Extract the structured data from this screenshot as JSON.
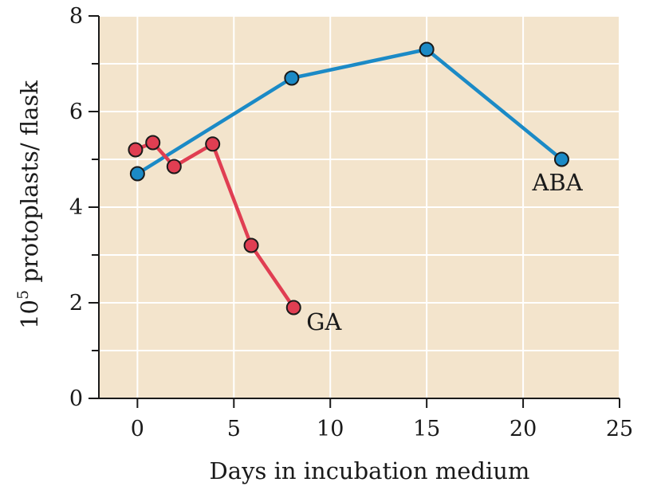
{
  "chart_data": {
    "type": "line",
    "xlabel": "Days in incubation medium",
    "ylabel_base": "10",
    "ylabel_exponent": "5",
    "ylabel_rest": " protoplasts/ flask",
    "xlim": [
      -2,
      25
    ],
    "ylim": [
      0,
      8
    ],
    "x_ticks": [
      0,
      5,
      10,
      15,
      20,
      25
    ],
    "y_ticks": [
      0,
      2,
      4,
      6,
      8
    ],
    "grid": true,
    "background_color": "#f3e4cc",
    "grid_color": "#ffffff",
    "series": [
      {
        "name": "ABA",
        "color": "#1b8ac6",
        "x": [
          0,
          8,
          15,
          22
        ],
        "y": [
          4.7,
          6.7,
          7.3,
          5.0
        ]
      },
      {
        "name": "GA",
        "color": "#e03e52",
        "x": [
          -0.1,
          0.8,
          1.9,
          3.9,
          5.9,
          8.1
        ],
        "y": [
          5.2,
          5.35,
          4.85,
          5.32,
          3.2,
          1.9
        ]
      }
    ]
  }
}
